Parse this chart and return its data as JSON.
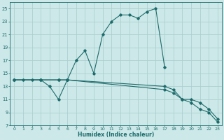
{
  "xlabel": "Humidex (Indice chaleur)",
  "xlim": [
    -0.5,
    23.5
  ],
  "ylim": [
    7,
    26
  ],
  "xticks": [
    0,
    1,
    2,
    3,
    4,
    5,
    6,
    7,
    8,
    9,
    10,
    11,
    12,
    13,
    14,
    15,
    16,
    17,
    18,
    19,
    20,
    21,
    22,
    23
  ],
  "yticks": [
    7,
    9,
    11,
    13,
    15,
    17,
    19,
    21,
    23,
    25
  ],
  "bg_color": "#cce8e8",
  "line_color": "#1e6b6b",
  "grid_color": "#a8cccc",
  "series": [
    {
      "x": [
        0,
        1,
        2,
        3,
        4,
        5,
        6,
        7,
        8,
        9,
        10,
        11,
        12,
        13,
        14,
        15,
        16,
        17
      ],
      "y": [
        14,
        14,
        14,
        14,
        13,
        11,
        14,
        17,
        18.5,
        15,
        21,
        23,
        24,
        24,
        23.5,
        24.5,
        25,
        16
      ]
    },
    {
      "x": [
        0,
        3,
        5,
        6,
        17,
        18,
        19,
        20,
        21,
        22,
        23
      ],
      "y": [
        14,
        14,
        14,
        14,
        12.5,
        12,
        11,
        11,
        10.5,
        9.5,
        8
      ]
    },
    {
      "x": [
        0,
        3,
        5,
        6,
        17,
        18,
        19,
        20,
        21,
        22,
        23
      ],
      "y": [
        14,
        14,
        14,
        14,
        13,
        12.5,
        11,
        10.5,
        9.5,
        9,
        7.5
      ]
    }
  ]
}
